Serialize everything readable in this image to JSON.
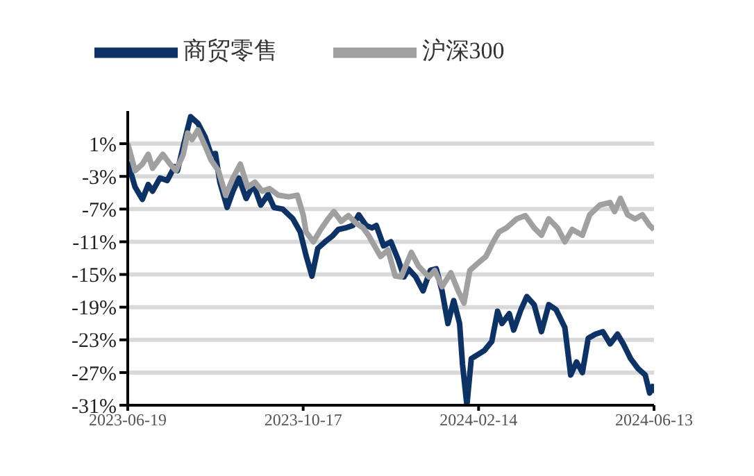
{
  "chart_data": {
    "type": "line",
    "xlim": [
      "2023-06-19",
      "2024-06-13"
    ],
    "xticks": [
      "2023-06-19",
      "2023-10-17",
      "2024-02-14",
      "2024-06-13"
    ],
    "ylim": [
      -31,
      5
    ],
    "yticks": [
      {
        "value": 1,
        "label": "1%"
      },
      {
        "value": -3,
        "label": "-3%"
      },
      {
        "value": -7,
        "label": "-7%"
      },
      {
        "value": -11,
        "label": "-11%"
      },
      {
        "value": -15,
        "label": "-15%"
      },
      {
        "value": -19,
        "label": "-19%"
      },
      {
        "value": -23,
        "label": "-23%"
      },
      {
        "value": -27,
        "label": "-27%"
      },
      {
        "value": -31,
        "label": "-31%"
      }
    ],
    "grid": "y",
    "legend": "top",
    "marker": "none",
    "line_style": "solid",
    "series": [
      {
        "name": "商贸零售",
        "color": "#0c3266",
        "x": [
          "2023-06-19",
          "2023-06-24",
          "2023-06-29",
          "2023-07-03",
          "2023-07-06",
          "2023-07-11",
          "2023-07-16",
          "2023-07-21",
          "2023-07-23",
          "2023-07-27",
          "2023-08-01",
          "2023-08-06",
          "2023-08-11",
          "2023-08-15",
          "2023-08-18",
          "2023-08-21",
          "2023-08-26",
          "2023-08-30",
          "2023-09-03",
          "2023-09-08",
          "2023-09-13",
          "2023-09-18",
          "2023-09-23",
          "2023-09-27",
          "2023-10-03",
          "2023-10-10",
          "2023-10-15",
          "2023-10-19",
          "2023-10-23",
          "2023-10-27",
          "2023-11-01",
          "2023-11-06",
          "2023-11-10",
          "2023-11-15",
          "2023-11-20",
          "2023-11-24",
          "2023-11-29",
          "2023-12-03",
          "2023-12-06",
          "2023-12-11",
          "2023-12-16",
          "2023-12-21",
          "2023-12-25",
          "2023-12-28",
          "2024-01-02",
          "2024-01-07",
          "2024-01-12",
          "2024-01-16",
          "2024-01-20",
          "2024-01-24",
          "2024-01-28",
          "2024-02-01",
          "2024-02-03",
          "2024-02-06",
          "2024-02-09",
          "2024-02-18",
          "2024-02-23",
          "2024-02-27",
          "2024-03-01",
          "2024-03-06",
          "2024-03-09",
          "2024-03-14",
          "2024-03-18",
          "2024-03-23",
          "2024-03-28",
          "2024-04-02",
          "2024-04-07",
          "2024-04-13",
          "2024-04-17",
          "2024-04-21",
          "2024-04-25",
          "2024-04-29",
          "2024-05-04",
          "2024-05-09",
          "2024-05-14",
          "2024-05-19",
          "2024-05-23",
          "2024-05-28",
          "2024-06-02",
          "2024-06-07",
          "2024-06-10",
          "2024-06-12",
          "2024-06-13"
        ],
        "values": [
          -1.2,
          -4.3,
          -5.8,
          -4,
          -4.8,
          -3.2,
          -3.5,
          -1.8,
          -2.3,
          0.7,
          4.3,
          3.5,
          1.8,
          -0.3,
          -0.2,
          -3.7,
          -6.8,
          -4.8,
          -3.2,
          -5.7,
          -4,
          -6.5,
          -5.2,
          -6.8,
          -7,
          -8.2,
          -9.8,
          -12.7,
          -15.2,
          -11.8,
          -11,
          -10.3,
          -9.5,
          -9.3,
          -9,
          -7.7,
          -9,
          -9.3,
          -9,
          -11.5,
          -11,
          -13.2,
          -15.3,
          -14.3,
          -15.3,
          -17,
          -14.5,
          -14.3,
          -17,
          -21,
          -18.2,
          -21,
          -26,
          -31,
          -25.3,
          -24.3,
          -23.2,
          -19.5,
          -21,
          -19.8,
          -21.8,
          -19.3,
          -17.7,
          -18.7,
          -22,
          -18.7,
          -19.3,
          -21.5,
          -27.3,
          -25.7,
          -27,
          -22.8,
          -22.3,
          -22,
          -23.5,
          -22.3,
          -23.5,
          -25.3,
          -26.5,
          -27.3,
          -29.5,
          -28.7,
          -29.5
        ]
      },
      {
        "name": "沪深300",
        "color": "#a0a0a0",
        "x": [
          "2023-06-19",
          "2023-06-24",
          "2023-06-29",
          "2023-07-03",
          "2023-07-06",
          "2023-07-13",
          "2023-07-18",
          "2023-07-22",
          "2023-07-27",
          "2023-07-30",
          "2023-08-02",
          "2023-08-06",
          "2023-08-11",
          "2023-08-15",
          "2023-08-20",
          "2023-08-25",
          "2023-08-30",
          "2023-09-04",
          "2023-09-09",
          "2023-09-14",
          "2023-09-19",
          "2023-09-24",
          "2023-09-30",
          "2023-10-07",
          "2023-10-13",
          "2023-10-17",
          "2023-10-19",
          "2023-10-24",
          "2023-10-29",
          "2023-11-03",
          "2023-11-07",
          "2023-11-12",
          "2023-11-17",
          "2023-11-22",
          "2023-11-27",
          "2023-12-01",
          "2023-12-09",
          "2023-12-14",
          "2023-12-19",
          "2023-12-23",
          "2023-12-30",
          "2024-01-04",
          "2024-01-11",
          "2024-01-15",
          "2024-01-20",
          "2024-01-26",
          "2024-01-31",
          "2024-02-04",
          "2024-02-08",
          "2024-02-13",
          "2024-02-19",
          "2024-02-24",
          "2024-02-28",
          "2024-03-04",
          "2024-03-11",
          "2024-03-17",
          "2024-03-23",
          "2024-03-28",
          "2024-04-02",
          "2024-04-08",
          "2024-04-13",
          "2024-04-18",
          "2024-04-25",
          "2024-04-30",
          "2024-05-07",
          "2024-05-14",
          "2024-05-17",
          "2024-05-21",
          "2024-05-26",
          "2024-05-31",
          "2024-06-05",
          "2024-06-10",
          "2024-06-13"
        ],
        "values": [
          1,
          -2.3,
          -1.5,
          -0.3,
          -2,
          -0.3,
          -1.5,
          -2.3,
          -0.3,
          2.3,
          1.5,
          2.7,
          0.7,
          -1,
          -2.3,
          -5.3,
          -3.2,
          -1.5,
          -4.3,
          -3.7,
          -4.8,
          -4.5,
          -5.3,
          -5.5,
          -5.3,
          -7.7,
          -9.8,
          -11,
          -9.5,
          -8.2,
          -7.3,
          -8.5,
          -7.8,
          -8.7,
          -9.3,
          -10.3,
          -12.8,
          -12,
          -15.2,
          -15.3,
          -12.3,
          -14,
          -15.3,
          -14.5,
          -16.5,
          -14.8,
          -17,
          -18.5,
          -14.5,
          -13.7,
          -12.8,
          -11,
          -9.8,
          -9.3,
          -8.2,
          -7.8,
          -9.3,
          -10.2,
          -8.2,
          -9.3,
          -11,
          -9.5,
          -10.2,
          -7.7,
          -6.5,
          -6.2,
          -7.3,
          -5.7,
          -7.7,
          -8.2,
          -7.7,
          -9,
          -9.5
        ]
      }
    ]
  }
}
